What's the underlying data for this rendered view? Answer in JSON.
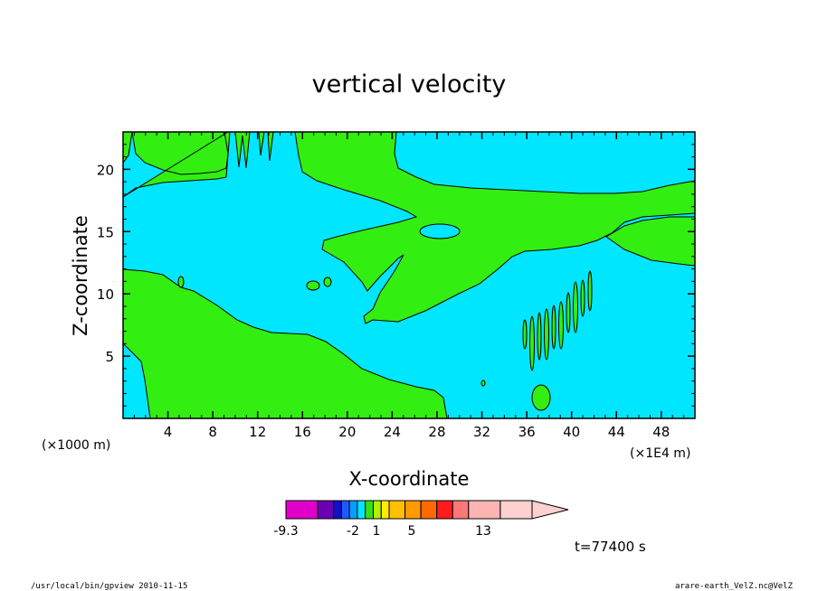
{
  "chart_data": {
    "type": "contour",
    "title": "vertical velocity",
    "xlabel": "X-coordinate",
    "ylabel": "Z-coordinate",
    "x_unit": "(×1E4 m)",
    "y_unit": "(×1000 m)",
    "xlim": [
      0,
      51
    ],
    "ylim": [
      0,
      23
    ],
    "x_ticks": [
      4,
      8,
      12,
      16,
      20,
      24,
      28,
      32,
      36,
      40,
      44,
      48
    ],
    "y_ticks": [
      5,
      10,
      15,
      20
    ],
    "colorbar": {
      "labels": [
        {
          "value": -9.3,
          "text": "-9.3"
        },
        {
          "value": -2,
          "text": "-2"
        },
        {
          "value": 1,
          "text": "1"
        },
        {
          "value": 5,
          "text": "5"
        },
        {
          "value": 13,
          "text": "13"
        }
      ],
      "colors": [
        "#e000c8",
        "#6a00b4",
        "#1010c8",
        "#1e5aff",
        "#00a0ff",
        "#00e6ff",
        "#36e010",
        "#b4f000",
        "#ffec00",
        "#ffc000",
        "#ff9a00",
        "#ff6a00",
        "#ff1c1c",
        "#ff7878",
        "#ffb4b4",
        "#ffd0d0"
      ],
      "widths": [
        2,
        1,
        0.5,
        0.5,
        0.5,
        0.5,
        0.5,
        0.5,
        0.5,
        1,
        1,
        1,
        1,
        1,
        2,
        2
      ]
    },
    "region_colors": {
      "positive": "#33ee11",
      "negative": "#00e6ff"
    }
  },
  "time_label": "t=77400 s",
  "footer_left": "/usr/local/bin/gpview   2010-11-15",
  "footer_right": "arare-earth_VelZ.nc@VelZ"
}
